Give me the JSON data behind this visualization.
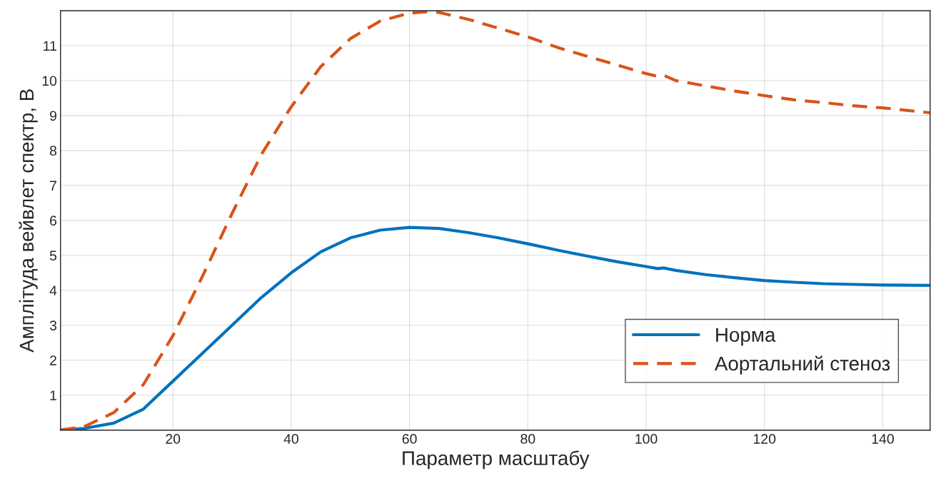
{
  "chart_data": {
    "type": "line",
    "xlabel": "Параметр масштабу",
    "ylabel": "Амплітуда вейвлет спектр, В",
    "xlim": [
      1,
      148
    ],
    "ylim": [
      0,
      12
    ],
    "xticks": [
      20,
      40,
      60,
      80,
      100,
      120,
      140
    ],
    "yticks": [
      1,
      2,
      3,
      4,
      5,
      6,
      7,
      8,
      9,
      10,
      11
    ],
    "grid": true,
    "legend": "bottom right",
    "series": [
      {
        "name": "Норма",
        "color": "#0072bd",
        "line_style": "solid",
        "x": [
          1,
          5,
          10,
          15,
          20,
          25,
          30,
          35,
          40,
          45,
          50,
          55,
          60,
          65,
          70,
          75,
          80,
          85,
          90,
          95,
          100,
          102,
          103,
          105,
          110,
          115,
          120,
          125,
          130,
          135,
          140,
          148
        ],
        "values": [
          0,
          0.05,
          0.2,
          0.6,
          1.4,
          2.2,
          3.0,
          3.8,
          4.5,
          5.1,
          5.5,
          5.72,
          5.8,
          5.77,
          5.65,
          5.5,
          5.33,
          5.15,
          4.98,
          4.82,
          4.68,
          4.62,
          4.64,
          4.57,
          4.45,
          4.36,
          4.28,
          4.23,
          4.19,
          4.17,
          4.15,
          4.14
        ]
      },
      {
        "name": "Аортальний стеноз",
        "color": "#d95319",
        "line_style": "dashed",
        "x": [
          1,
          5,
          10,
          15,
          20,
          25,
          30,
          35,
          40,
          45,
          50,
          55,
          60,
          63,
          65,
          70,
          75,
          80,
          85,
          90,
          95,
          100,
          102,
          103,
          105,
          110,
          115,
          120,
          125,
          130,
          135,
          140,
          148
        ],
        "values": [
          0,
          0.1,
          0.5,
          1.3,
          2.7,
          4.4,
          6.2,
          7.9,
          9.25,
          10.4,
          11.2,
          11.7,
          11.93,
          11.97,
          11.95,
          11.75,
          11.5,
          11.25,
          10.95,
          10.7,
          10.45,
          10.2,
          10.12,
          10.15,
          10.0,
          9.85,
          9.7,
          9.57,
          9.45,
          9.37,
          9.28,
          9.22,
          9.08
        ]
      }
    ]
  }
}
